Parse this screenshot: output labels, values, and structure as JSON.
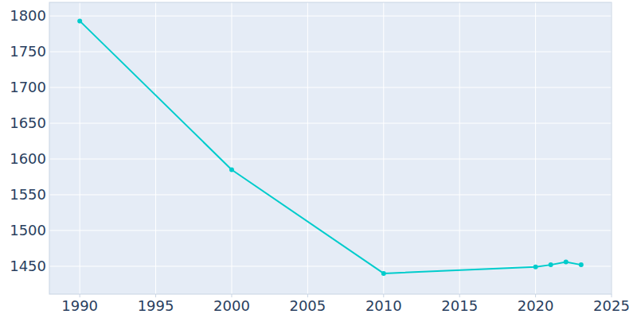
{
  "chart_data": {
    "type": "line",
    "color": "#00cccc",
    "marker": "circle",
    "grid": true,
    "x": [
      1990,
      2000,
      2010,
      2020,
      2021,
      2022,
      2023
    ],
    "values": [
      1793,
      1585,
      1440,
      1449,
      1452,
      1456,
      1452
    ],
    "xlim": [
      1988,
      2025
    ],
    "xticks": [
      1990,
      1995,
      2000,
      2005,
      2010,
      2015,
      2020,
      2025
    ],
    "ylim": [
      1411,
      1819
    ],
    "yticks": [
      1450,
      1500,
      1550,
      1600,
      1650,
      1700,
      1750,
      1800
    ]
  }
}
